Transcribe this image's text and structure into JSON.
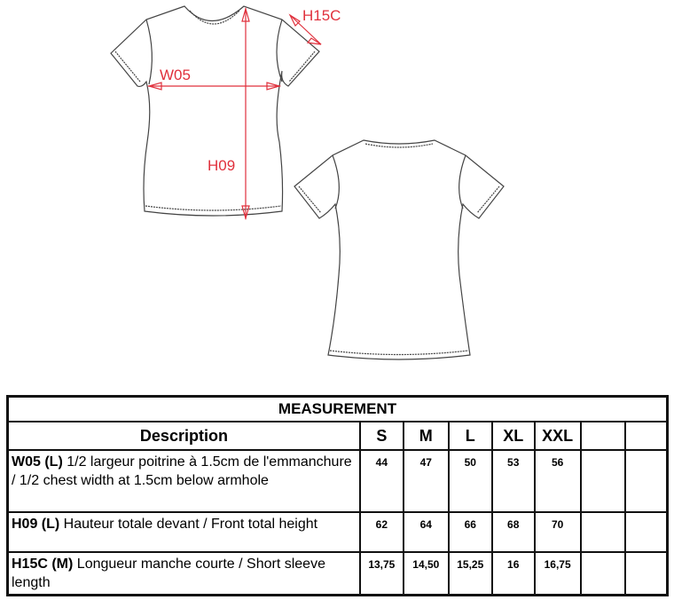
{
  "diagram": {
    "labels": {
      "w05": "W05",
      "h09": "H09",
      "h15c": "H15C"
    },
    "colors": {
      "measure": "#e0303c",
      "outline": "#444444"
    }
  },
  "table": {
    "title": "MEASUREMENT",
    "headers": [
      "Description",
      "S",
      "M",
      "L",
      "XL",
      "XXL",
      "",
      ""
    ],
    "rows": [
      {
        "code": "W05 (L)",
        "text": " 1/2 largeur poitrine à 1.5cm de l'emmanchure / 1/2 chest width at 1.5cm below armhole",
        "values": [
          "44",
          "47",
          "50",
          "53",
          "56",
          "",
          ""
        ]
      },
      {
        "code": "H09 (L)",
        "text": " Hauteur totale devant / Front total height",
        "values": [
          "62",
          "64",
          "66",
          "68",
          "70",
          "",
          ""
        ]
      },
      {
        "code": "H15C (M)",
        "text": " Longueur manche courte / Short sleeve length",
        "values": [
          "13,75",
          "14,50",
          "15,25",
          "16",
          "16,75",
          "",
          ""
        ]
      }
    ]
  }
}
